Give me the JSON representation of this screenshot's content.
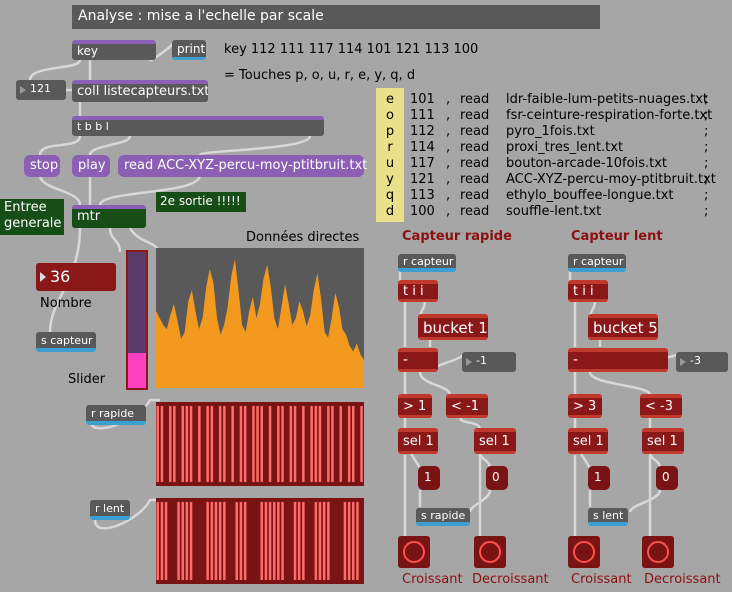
{
  "title": "Analyse : mise a l'echelle par scale",
  "objects": {
    "key": "key",
    "print": "print",
    "num121": "121",
    "coll": "coll listecapteurs.txt",
    "tbbl": "t b b l",
    "mtr": "mtr",
    "r_rapide": "r rapide",
    "r_lent": "r lent",
    "s_capteur": "s capteur"
  },
  "messages": {
    "stop": "stop",
    "play": "play",
    "read": "read ACC-XYZ-percu-moy-ptitbruit.txt"
  },
  "comments": {
    "keys_codes": "key 112 111 117 114 101 121 113 100",
    "touches": "= Touches p, o, u, r, e, y, q, d",
    "entree_generale": "Entree generale",
    "deuxieme_sortie": "2e sortie !!!!!",
    "donnees_directes": "Données directes",
    "nombre": "Nombre",
    "slider": "Slider",
    "number_value": "36"
  },
  "key_letters": [
    "e",
    "o",
    "p",
    "r",
    "u",
    "y",
    "q",
    "d"
  ],
  "file_table": [
    {
      "code": "101",
      "cmd": "read",
      "file": "ldr-faible-lum-petits-nuages.txt",
      "end": ";"
    },
    {
      "code": "111",
      "cmd": "read",
      "file": "fsr-ceinture-respiration-forte.txt",
      "end": ";"
    },
    {
      "code": "112",
      "cmd": "read",
      "file": "pyro_1fois.txt",
      "end": ";"
    },
    {
      "code": "114",
      "cmd": "read",
      "file": "proxi_tres_lent.txt",
      "end": ";"
    },
    {
      "code": "117",
      "cmd": "read",
      "file": "bouton-arcade-10fois.txt",
      "end": ";"
    },
    {
      "code": "121",
      "cmd": "read",
      "file": "ACC-XYZ-percu-moy-ptitbruit.txt",
      "end": ";"
    },
    {
      "code": "113",
      "cmd": "read",
      "file": "ethylo_bouffee-longue.txt",
      "end": ";"
    },
    {
      "code": "100",
      "cmd": "read",
      "file": "souffle-lent.txt",
      "end": ";"
    }
  ],
  "capteur_rapide": {
    "title": "Capteur rapide",
    "r_capteur": "r capteur",
    "tii": "t i i",
    "bucket": "bucket 1",
    "minus": "-",
    "minus_num": "-1",
    "gt": "> 1",
    "lt": "< -1",
    "sel1a": "sel 1",
    "sel1b": "sel 1",
    "msg1": "1",
    "msg0": "0",
    "send": "s rapide",
    "croissant": "Croissant",
    "decroissant": "Decroissant"
  },
  "capteur_lent": {
    "title": "Capteur lent",
    "r_capteur": "r capteur",
    "tii": "t i i",
    "bucket": "bucket 5",
    "minus": "-",
    "minus_num": "-3",
    "gt": "> 3",
    "lt": "< -3",
    "sel1a": "sel 1",
    "sel1b": "sel 1",
    "msg1": "1",
    "msg0": "0",
    "send": "s lent",
    "croissant": "Croissant",
    "decroissant": "Decroissant"
  },
  "slider_level": 0.26,
  "waveform": [
    0.55,
    0.5,
    0.45,
    0.42,
    0.52,
    0.6,
    0.48,
    0.35,
    0.4,
    0.62,
    0.7,
    0.55,
    0.42,
    0.5,
    0.72,
    0.85,
    0.75,
    0.5,
    0.38,
    0.45,
    0.58,
    0.8,
    0.92,
    0.7,
    0.45,
    0.4,
    0.55,
    0.65,
    0.5,
    0.6,
    0.78,
    0.88,
    0.72,
    0.5,
    0.42,
    0.58,
    0.74,
    0.6,
    0.45,
    0.5,
    0.62,
    0.55,
    0.44,
    0.52,
    0.7,
    0.82,
    0.64,
    0.4,
    0.36,
    0.5,
    0.68,
    0.58,
    0.42,
    0.38,
    0.3,
    0.26,
    0.32,
    0.24,
    0.2
  ],
  "rapide_bars": [
    1,
    1,
    0,
    1,
    1,
    0,
    1,
    1,
    1,
    0,
    1,
    0,
    1,
    1,
    0,
    1,
    1,
    0,
    1,
    0,
    1,
    1,
    0,
    1,
    1,
    1,
    0,
    1,
    0,
    1,
    1,
    0,
    1,
    1,
    0,
    1,
    0,
    1,
    1,
    1,
    0,
    1,
    1,
    0,
    1,
    0,
    1,
    1,
    0,
    1
  ],
  "lent_bars": [
    1,
    1,
    1,
    0,
    0,
    1,
    1,
    1,
    1,
    0,
    0,
    0,
    1,
    1,
    1,
    1,
    1,
    0,
    0,
    1,
    1,
    1,
    0,
    0,
    0,
    1,
    1,
    1,
    1,
    1,
    1,
    0,
    0,
    1,
    1,
    1,
    0,
    0,
    1,
    1,
    1,
    1,
    0,
    0,
    0,
    1,
    1,
    1,
    1,
    0
  ],
  "colors": {
    "background": "#a6a6a6",
    "object": "#595959",
    "accent_red": "#8b1818",
    "waveform": "#f39a1e",
    "bars": "#ff6b6b",
    "slider": "#ff40c0"
  }
}
